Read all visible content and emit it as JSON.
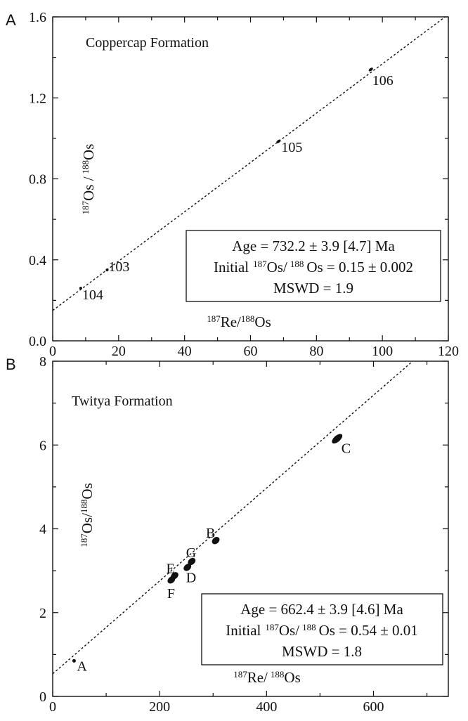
{
  "chart_data": [
    {
      "panel_label": "A",
      "type": "scatter",
      "title": "Coppercap Formation",
      "xlabel": {
        "sup1": "187",
        "base1": "Re/",
        "sup2": "188",
        "base2": "Os"
      },
      "ylabel": {
        "sup1": "187",
        "base1": "Os /",
        "sup2": "188",
        "base2": "Os"
      },
      "xlim": [
        0,
        120
      ],
      "ylim": [
        0,
        1.6
      ],
      "x_ticks": [
        0,
        20,
        40,
        60,
        80,
        100,
        120
      ],
      "y_ticks": [
        0,
        0.4,
        0.8,
        1.2,
        1.6
      ],
      "x_tick_labels": [
        "0",
        "20",
        "40",
        "60",
        "80",
        "100",
        "120"
      ],
      "y_tick_labels": [
        "0.0",
        "0.4",
        "0.8",
        "1.2",
        "1.6"
      ],
      "points": [
        {
          "label": "104",
          "x": 8.5,
          "y": 0.26
        },
        {
          "label": "103",
          "x": 16.5,
          "y": 0.35
        },
        {
          "label": "105",
          "x": 68.5,
          "y": 0.985
        },
        {
          "label": "106",
          "x": 96.5,
          "y": 1.34
        }
      ],
      "regression_line": {
        "intercept": 0.15,
        "slope": 0.01218
      },
      "annotation": {
        "line1": "Age = 732.2 ± 3.9 [4.7] Ma",
        "line2_prefix": "Initial",
        "sup1": "187",
        "mid": "Os/",
        "sup2": "188",
        "line2_suffix": "Os = 0.15 ± 0.002",
        "line3": "MSWD = 1.9"
      }
    },
    {
      "panel_label": "B",
      "type": "scatter",
      "title": "Twitya Formation",
      "xlabel": {
        "sup1": "187",
        "base1": "Re/",
        "sup2": "188",
        "base2": "Os"
      },
      "ylabel": {
        "sup1": "187",
        "base1": "Os/",
        "sup2": "188",
        "base2": "Os"
      },
      "xlim": [
        0,
        740
      ],
      "ylim": [
        0,
        8
      ],
      "x_ticks": [
        0,
        200,
        400,
        600
      ],
      "y_ticks": [
        0,
        2,
        4,
        6,
        8
      ],
      "x_tick_labels": [
        "0",
        "200",
        "400",
        "600"
      ],
      "y_tick_labels": [
        "0",
        "2",
        "4",
        "6",
        "8"
      ],
      "points": [
        {
          "label": "A",
          "x": 40,
          "y": 0.85
        },
        {
          "label": "F",
          "x": 222,
          "y": 2.78
        },
        {
          "label": "E",
          "x": 228,
          "y": 2.88
        },
        {
          "label": "D",
          "x": 252,
          "y": 3.08
        },
        {
          "label": "G",
          "x": 260,
          "y": 3.22
        },
        {
          "label": "B",
          "x": 305,
          "y": 3.72
        },
        {
          "label": "C",
          "x": 532,
          "y": 6.15
        }
      ],
      "regression_line": {
        "intercept": 0.54,
        "slope": 0.01108
      },
      "annotation": {
        "line1": "Age = 662.4 ± 3.9 [4.6] Ma",
        "line2_prefix": "Initial",
        "sup1": "187",
        "mid": "Os/",
        "sup2": "188",
        "line2_suffix": "Os = 0.54 ± 0.01",
        "line3": "MSWD = 1.8"
      }
    }
  ]
}
